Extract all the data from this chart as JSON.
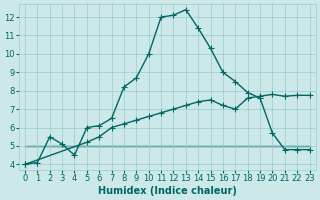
{
  "xlabel": "Humidex (Indice chaleur)",
  "background_color": "#cce8e8",
  "grid_color": "#99cccc",
  "line_color": "#006666",
  "xlim_min": -0.5,
  "xlim_max": 23.5,
  "ylim_min": 3.7,
  "ylim_max": 12.7,
  "yticks": [
    4,
    5,
    6,
    7,
    8,
    9,
    10,
    11,
    12
  ],
  "xticks": [
    0,
    1,
    2,
    3,
    4,
    5,
    6,
    7,
    8,
    9,
    10,
    11,
    12,
    13,
    14,
    15,
    16,
    17,
    18,
    19,
    20,
    21,
    22,
    23
  ],
  "series1_x": [
    0,
    1,
    2,
    3,
    4,
    5,
    6,
    7,
    8,
    9,
    10,
    11,
    12,
    13,
    14,
    15,
    16,
    17,
    18,
    19,
    20,
    21,
    22,
    23
  ],
  "series1_y": [
    4.0,
    4.1,
    5.5,
    5.1,
    4.5,
    6.0,
    6.1,
    6.5,
    8.2,
    8.7,
    10.0,
    12.0,
    12.1,
    12.4,
    11.4,
    10.3,
    9.0,
    8.5,
    7.9,
    7.6,
    5.7,
    4.8,
    4.8,
    4.8
  ],
  "series2_x": [
    0,
    5,
    6,
    7,
    8,
    9,
    10,
    11,
    12,
    13,
    14,
    15,
    16,
    17,
    18,
    19,
    20,
    21,
    22,
    23
  ],
  "series2_y": [
    4.0,
    5.2,
    5.5,
    6.0,
    6.2,
    6.4,
    6.6,
    6.8,
    7.0,
    7.2,
    7.4,
    7.5,
    7.2,
    7.0,
    7.6,
    7.7,
    7.8,
    7.7,
    7.75,
    7.75
  ],
  "series3_x": [
    0,
    23
  ],
  "series3_y": [
    5.0,
    5.0
  ],
  "marker_size": 4,
  "line_width": 1.0,
  "tick_fontsize": 6,
  "xlabel_fontsize": 7
}
